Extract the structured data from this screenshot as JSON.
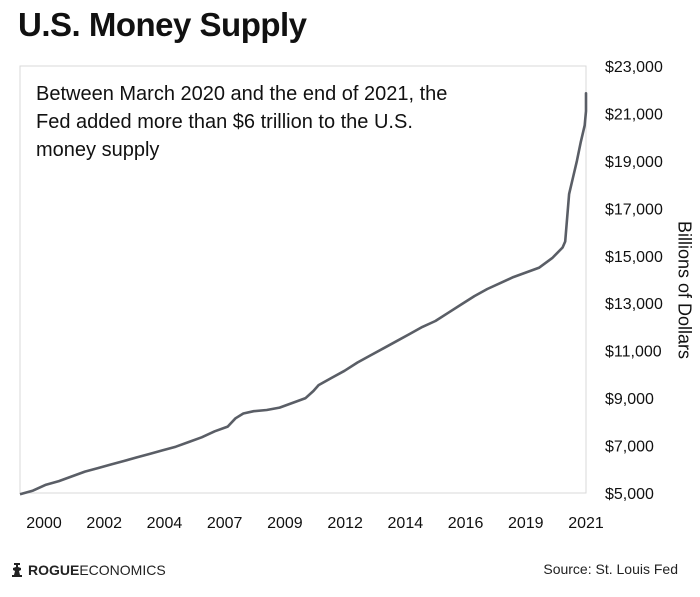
{
  "chart_data": {
    "type": "line",
    "title": "U.S. Money Supply",
    "ylabel": "Billions of Dollars",
    "xlabel": "",
    "x_tick_labels": [
      "2000",
      "2002",
      "2004",
      "2007",
      "2009",
      "2012",
      "2014",
      "2016",
      "2019",
      "2021"
    ],
    "y_tick_labels": [
      "$5,000",
      "$7,000",
      "$9,000",
      "$11,000",
      "$13,000",
      "$15,000",
      "$17,000",
      "$19,000",
      "$21,000",
      "$23,000"
    ],
    "y_ticks": [
      5000,
      7000,
      9000,
      11000,
      13000,
      15000,
      17000,
      19000,
      21000,
      23000
    ],
    "ylim": [
      5000,
      23000
    ],
    "xlim": [
      2000.0,
      2021.8
    ],
    "grid": false,
    "annotation": "Between March 2020 and the end of 2021, the Fed added more than $6 trillion to the U.S. money supply",
    "series": [
      {
        "color": "#5a5e66",
        "points": [
          [
            2000.0,
            4950
          ],
          [
            2000.5,
            5100
          ],
          [
            2001.0,
            5350
          ],
          [
            2001.5,
            5500
          ],
          [
            2002.0,
            5700
          ],
          [
            2002.5,
            5900
          ],
          [
            2003.0,
            6050
          ],
          [
            2003.5,
            6200
          ],
          [
            2004.0,
            6350
          ],
          [
            2004.5,
            6500
          ],
          [
            2005.0,
            6650
          ],
          [
            2005.5,
            6800
          ],
          [
            2006.0,
            6950
          ],
          [
            2006.5,
            7150
          ],
          [
            2007.0,
            7350
          ],
          [
            2007.5,
            7600
          ],
          [
            2008.0,
            7800
          ],
          [
            2008.3,
            8150
          ],
          [
            2008.6,
            8350
          ],
          [
            2009.0,
            8450
          ],
          [
            2009.5,
            8500
          ],
          [
            2010.0,
            8600
          ],
          [
            2010.5,
            8800
          ],
          [
            2011.0,
            9000
          ],
          [
            2011.3,
            9300
          ],
          [
            2011.5,
            9550
          ],
          [
            2012.0,
            9850
          ],
          [
            2012.5,
            10150
          ],
          [
            2013.0,
            10500
          ],
          [
            2013.5,
            10800
          ],
          [
            2014.0,
            11100
          ],
          [
            2014.5,
            11400
          ],
          [
            2015.0,
            11700
          ],
          [
            2015.5,
            12000
          ],
          [
            2016.0,
            12250
          ],
          [
            2016.5,
            12600
          ],
          [
            2017.0,
            12950
          ],
          [
            2017.5,
            13300
          ],
          [
            2018.0,
            13600
          ],
          [
            2018.5,
            13850
          ],
          [
            2019.0,
            14100
          ],
          [
            2019.5,
            14300
          ],
          [
            2020.0,
            14500
          ],
          [
            2020.5,
            14900
          ],
          [
            2020.9,
            15350
          ],
          [
            2021.0,
            15600
          ],
          [
            2021.15,
            17600
          ],
          [
            2021.3,
            18300
          ],
          [
            2021.45,
            19000
          ],
          [
            2021.6,
            19800
          ],
          [
            2021.75,
            20500
          ],
          [
            2021.9,
            21100
          ],
          [
            2022.05,
            21500
          ],
          [
            2022.2,
            21750
          ],
          [
            2022.35,
            21850
          ],
          [
            2022.5,
            21800
          ]
        ]
      }
    ]
  },
  "source": "Source: St. Louis Fed",
  "logo": {
    "bold": "ROGUE",
    "light": " ECONOMICS"
  }
}
